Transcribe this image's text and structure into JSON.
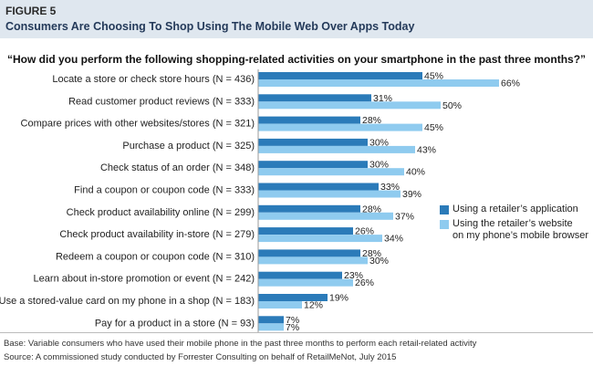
{
  "figure": {
    "label": "FIGURE 5",
    "title": "Consumers Are Choosing To Shop Using The Mobile Web Over Apps Today"
  },
  "chart_data": {
    "type": "bar",
    "orientation": "horizontal",
    "title": "“How did you perform the following shopping-related activities on your smartphone in the past three months?”",
    "categories": [
      "Locate a store or check store hours (N = 436)",
      "Read customer product reviews (N = 333)",
      "Compare prices with other websites/stores (N = 321)",
      "Purchase a product (N = 325)",
      "Check status of an order (N = 348)",
      "Find a coupon or coupon code (N = 333)",
      "Check product availability online (N = 299)",
      "Check product availability in-store (N = 279)",
      "Redeem a coupon or coupon code (N = 310)",
      "Learn about in-store promotion or event (N = 242)",
      "Use a stored-value card on my phone in a shop (N = 183)",
      "Pay for a product in a store (N = 93)"
    ],
    "series": [
      {
        "name": "Using a retailer’s application",
        "color": "#2b7bb9",
        "values": [
          45,
          31,
          28,
          30,
          30,
          33,
          28,
          26,
          28,
          23,
          19,
          7
        ]
      },
      {
        "name": "Using the retailer’s website on my phone’s mobile browser",
        "color": "#8fcbef",
        "values": [
          66,
          50,
          45,
          43,
          40,
          39,
          37,
          34,
          30,
          26,
          12,
          7
        ]
      }
    ],
    "value_suffix": "%",
    "xlim": [
      0,
      70
    ],
    "grid": false,
    "legend_position": "right"
  },
  "legend": {
    "app_label": "Using a retailer’s application",
    "web_label_line1": "Using the retailer’s website",
    "web_label_line2": "on my phone’s mobile browser"
  },
  "footer": {
    "base": "Base: Variable consumers who have used their mobile phone in the past three months to perform each retail-related activity",
    "source": "Source: A commissioned study conducted by Forrester Consulting on behalf of RetailMeNot, July 2015"
  }
}
